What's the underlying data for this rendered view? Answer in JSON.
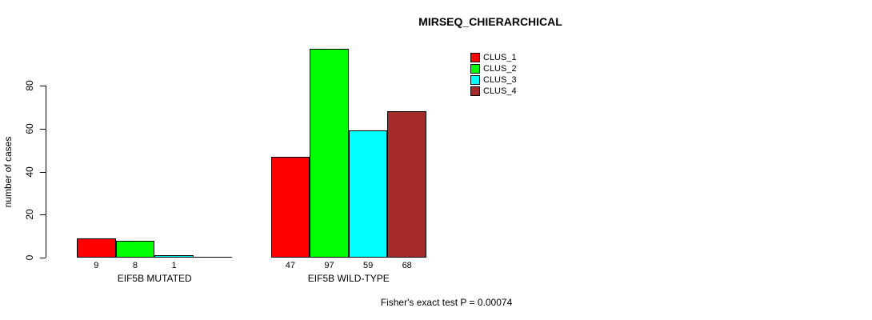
{
  "chart_data": {
    "type": "bar",
    "title": "MIRSEQ_CHIERARCHICAL",
    "ylabel": "number of cases",
    "xlabel": "",
    "ylim": [
      0,
      80
    ],
    "yticks": [
      0,
      20,
      40,
      60,
      80
    ],
    "grid": false,
    "legend_position": "top-right",
    "background": "#FFFFFF",
    "bar_border_color": "#000000",
    "series": [
      {
        "name": "CLUS_1",
        "color": "#FF0000"
      },
      {
        "name": "CLUS_2",
        "color": "#00FF00"
      },
      {
        "name": "CLUS_3",
        "color": "#00FFFF"
      },
      {
        "name": "CLUS_4",
        "color": "#A52A2A"
      }
    ],
    "groups": [
      {
        "label": "EIF5B MUTATED",
        "values": [
          9,
          8,
          1,
          0
        ],
        "value_labels": [
          "9",
          "8",
          "1",
          ""
        ]
      },
      {
        "label": "EIF5B WILD-TYPE",
        "values": [
          47,
          97,
          59,
          68
        ],
        "value_labels": [
          "47",
          "97",
          "59",
          "68"
        ]
      }
    ],
    "annotation": "Fisher's exact test P = 0.00074"
  }
}
